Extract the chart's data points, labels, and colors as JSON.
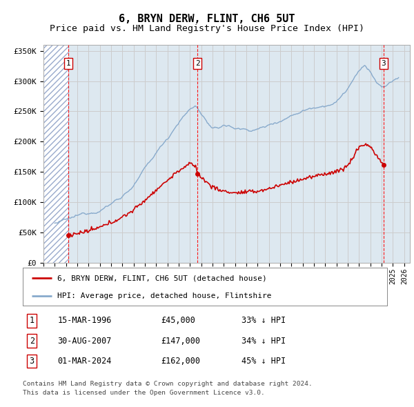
{
  "title": "6, BRYN DERW, FLINT, CH6 5UT",
  "subtitle": "Price paid vs. HM Land Registry's House Price Index (HPI)",
  "title_fontsize": 11,
  "subtitle_fontsize": 9.5,
  "ylabel_ticks": [
    "£0",
    "£50K",
    "£100K",
    "£150K",
    "£200K",
    "£250K",
    "£300K",
    "£350K"
  ],
  "ytick_values": [
    0,
    50000,
    100000,
    150000,
    200000,
    250000,
    300000,
    350000
  ],
  "ylim": [
    0,
    360000
  ],
  "xlim_start": 1994.0,
  "xlim_end": 2026.5,
  "hatch_region_end": 1996.2,
  "transactions": [
    {
      "label": "1",
      "date": 1996.2,
      "price": 45000,
      "date_str": "15-MAR-1996",
      "price_str": "£45,000",
      "hpi_str": "33% ↓ HPI"
    },
    {
      "label": "2",
      "date": 2007.66,
      "price": 147000,
      "date_str": "30-AUG-2007",
      "price_str": "£147,000",
      "hpi_str": "34% ↓ HPI"
    },
    {
      "label": "3",
      "date": 2024.17,
      "price": 162000,
      "date_str": "01-MAR-2024",
      "price_str": "£162,000",
      "hpi_str": "45% ↓ HPI"
    }
  ],
  "red_line_color": "#cc0000",
  "blue_line_color": "#88aacc",
  "hatch_color": "#aabbdd",
  "grid_color": "#cccccc",
  "background_color": "#ffffff",
  "plot_bg_color": "#dde8f0",
  "legend_label_red": "6, BRYN DERW, FLINT, CH6 5UT (detached house)",
  "legend_label_blue": "HPI: Average price, detached house, Flintshire",
  "footer_line1": "Contains HM Land Registry data © Crown copyright and database right 2024.",
  "footer_line2": "This data is licensed under the Open Government Licence v3.0."
}
